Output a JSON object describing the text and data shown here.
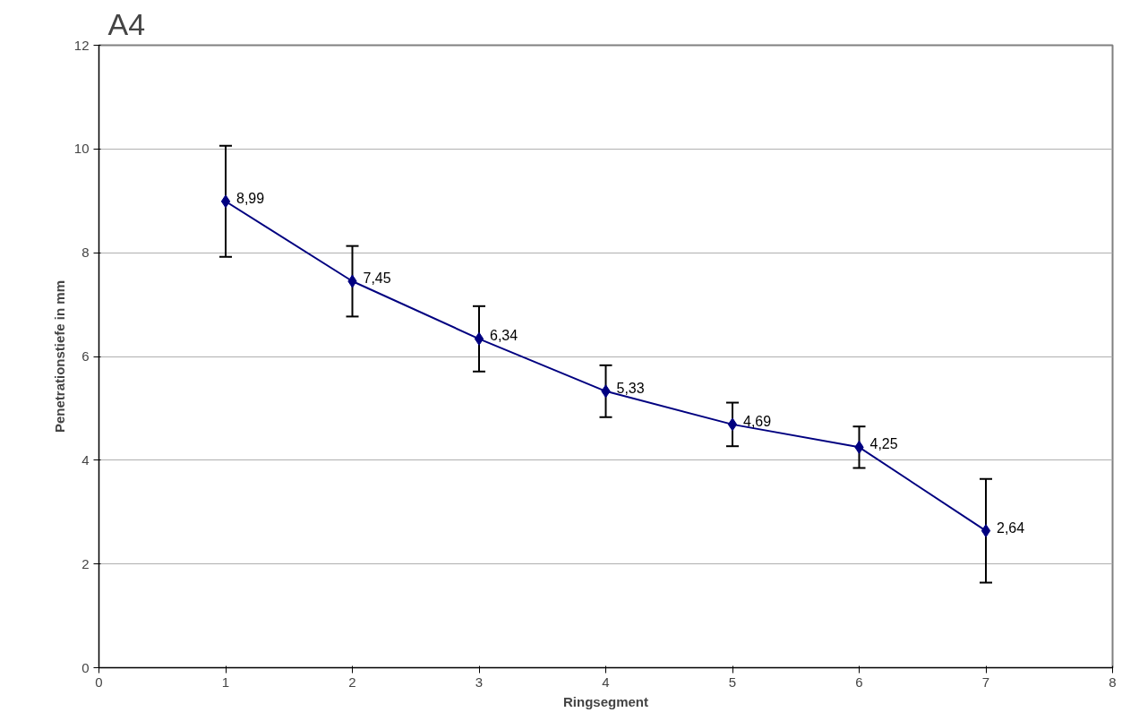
{
  "chart_data": {
    "type": "line",
    "title": "A4",
    "xlabel": "Ringsegment",
    "ylabel": "Penetrationstiefe in mm",
    "x": [
      1,
      2,
      3,
      4,
      5,
      6,
      7
    ],
    "series": [
      {
        "color": "#000080",
        "values": [
          8.99,
          7.45,
          6.34,
          5.33,
          4.69,
          4.25,
          2.64
        ],
        "errors": [
          1.07,
          0.68,
          0.63,
          0.5,
          0.42,
          0.4,
          1.0
        ],
        "value_labels": [
          "8,99",
          "7,45",
          "6,34",
          "5,33",
          "4,69",
          "4,25",
          "2,64"
        ]
      }
    ],
    "xlim": [
      0,
      8
    ],
    "xticks": [
      0,
      1,
      2,
      3,
      4,
      5,
      6,
      7,
      8
    ],
    "ylim": [
      0,
      12
    ],
    "yticks": [
      0,
      2,
      4,
      6,
      8,
      10,
      12
    ],
    "grid": "y",
    "marker": "diamond",
    "line_style": "solid"
  }
}
